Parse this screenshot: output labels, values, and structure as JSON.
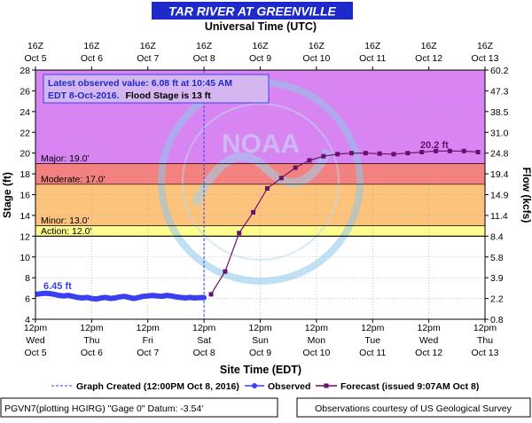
{
  "chart_data": {
    "type": "line",
    "title": "TAR RIVER AT GREENVILLE",
    "top_axis_title": "Universal Time (UTC)",
    "bottom_axis_title": "Site Time (EDT)",
    "ylabel_left": "Stage (ft)",
    "ylabel_right": "Flow (kcfs)",
    "ylim": [
      4,
      28
    ],
    "xlim_hours_from_oct5_12pm": [
      0,
      192
    ],
    "y_ticks": [
      "4",
      "6",
      "8",
      "10",
      "12",
      "14",
      "16",
      "18",
      "20",
      "22",
      "24",
      "26",
      "28"
    ],
    "flow_ticks": [
      {
        "stage": 4,
        "label": "0.8"
      },
      {
        "stage": 6,
        "label": "2.2"
      },
      {
        "stage": 8,
        "label": "3.9"
      },
      {
        "stage": 10,
        "label": "5.8"
      },
      {
        "stage": 12,
        "label": "8.4"
      },
      {
        "stage": 14,
        "label": "11.4"
      },
      {
        "stage": 16,
        "label": "14.9"
      },
      {
        "stage": 18,
        "label": "19.4"
      },
      {
        "stage": 20,
        "label": "24.8"
      },
      {
        "stage": 22,
        "label": "31.0"
      },
      {
        "stage": 24,
        "label": "38.5"
      },
      {
        "stage": 26,
        "label": "47.3"
      },
      {
        "stage": 28,
        "label": "60.2"
      }
    ],
    "top_ticks": [
      {
        "line1": "16Z",
        "line2": "Oct  5"
      },
      {
        "line1": "16Z",
        "line2": "Oct  6"
      },
      {
        "line1": "16Z",
        "line2": "Oct  7"
      },
      {
        "line1": "16Z",
        "line2": "Oct  8"
      },
      {
        "line1": "16Z",
        "line2": "Oct  9"
      },
      {
        "line1": "16Z",
        "line2": "Oct 10"
      },
      {
        "line1": "16Z",
        "line2": "Oct 11"
      },
      {
        "line1": "16Z",
        "line2": "Oct 12"
      },
      {
        "line1": "16Z",
        "line2": "Oct 13"
      }
    ],
    "bottom_ticks": [
      {
        "line1": "12pm",
        "line2": "Wed",
        "line3": "Oct 5"
      },
      {
        "line1": "12pm",
        "line2": "Thu",
        "line3": "Oct 6"
      },
      {
        "line1": "12pm",
        "line2": "Fri",
        "line3": "Oct 7"
      },
      {
        "line1": "12pm",
        "line2": "Sat",
        "line3": "Oct 8"
      },
      {
        "line1": "12pm",
        "line2": "Sun",
        "line3": "Oct 9"
      },
      {
        "line1": "12pm",
        "line2": "Mon",
        "line3": "Oct 10"
      },
      {
        "line1": "12pm",
        "line2": "Tue",
        "line3": "Oct 11"
      },
      {
        "line1": "12pm",
        "line2": "Wed",
        "line3": "Oct 12"
      },
      {
        "line1": "12pm",
        "line2": "Thu",
        "line3": "Oct 13"
      }
    ],
    "flood_categories": [
      {
        "name": "Major",
        "label": "Major: 19.0'",
        "from": 19,
        "to": 28,
        "color": "#d884f3"
      },
      {
        "name": "Moderate",
        "label": "Moderate: 17.0'",
        "from": 17,
        "to": 19,
        "color": "#f48080"
      },
      {
        "name": "Minor",
        "label": "Minor: 13.0'",
        "from": 13,
        "to": 17,
        "color": "#fbc37c"
      },
      {
        "name": "Action",
        "label": "Action: 12.0'",
        "from": 12,
        "to": 13,
        "color": "#fcfc8f"
      }
    ],
    "series": [
      {
        "name": "Observed",
        "color": "#3a40f0",
        "x": [
          0,
          2,
          4,
          6,
          8,
          10,
          12,
          14,
          16,
          18,
          20,
          22,
          24,
          26,
          28,
          30,
          32,
          34,
          36,
          38,
          40,
          42,
          44,
          46,
          48,
          50,
          52,
          54,
          56,
          58,
          60,
          62,
          64,
          66,
          68,
          70,
          72
        ],
        "y": [
          6.4,
          6.45,
          6.5,
          6.48,
          6.4,
          6.3,
          6.25,
          6.3,
          6.2,
          6.1,
          6.05,
          6.1,
          6.0,
          5.95,
          6.05,
          6.1,
          6.0,
          6.05,
          6.15,
          6.2,
          6.1,
          6.0,
          6.1,
          6.2,
          6.25,
          6.3,
          6.25,
          6.2,
          6.3,
          6.25,
          6.15,
          6.1,
          6.05,
          6.1,
          6.05,
          6.08,
          6.08
        ]
      },
      {
        "name": "Forecast",
        "color": "#6b0f6b",
        "x": [
          75,
          81,
          87,
          93,
          99,
          105,
          111,
          117,
          123,
          129,
          135,
          141,
          147,
          153,
          159,
          165,
          171,
          177,
          183,
          189
        ],
        "y": [
          6.4,
          8.6,
          12.3,
          14.3,
          16.6,
          17.6,
          18.6,
          19.3,
          19.7,
          19.9,
          20.0,
          20.0,
          19.95,
          19.9,
          20.0,
          20.1,
          20.2,
          20.2,
          20.2,
          20.1
        ]
      }
    ],
    "graph_created_x": 72,
    "annotations": {
      "latest_line1": "Latest observed value: 6.08 ft at 10:45 AM",
      "latest_line2_a": "EDT 8-Oct-2016.",
      "latest_line2_b": "Flood Stage is 13 ft",
      "obs_label": "6.45 ft",
      "fcst_label": "20.2 ft"
    },
    "legend": {
      "graph_created": "Graph Created (12:00PM Oct 8, 2016)",
      "observed": "Observed",
      "forecast": "Forecast (issued 9:07AM Oct 8)"
    },
    "footer": {
      "left": "PGVN7(plotting HGIRG) \"Gage 0\" Datum:  -3.54'",
      "right": "Observations courtesy of US Geological Survey"
    },
    "watermark_text": "NATIONAL OCEANIC AND ATMOSPHERIC ADMINISTRATION · U.S. DEPARTMENT OF COMMERCE",
    "watermark_center": "NOAA"
  }
}
